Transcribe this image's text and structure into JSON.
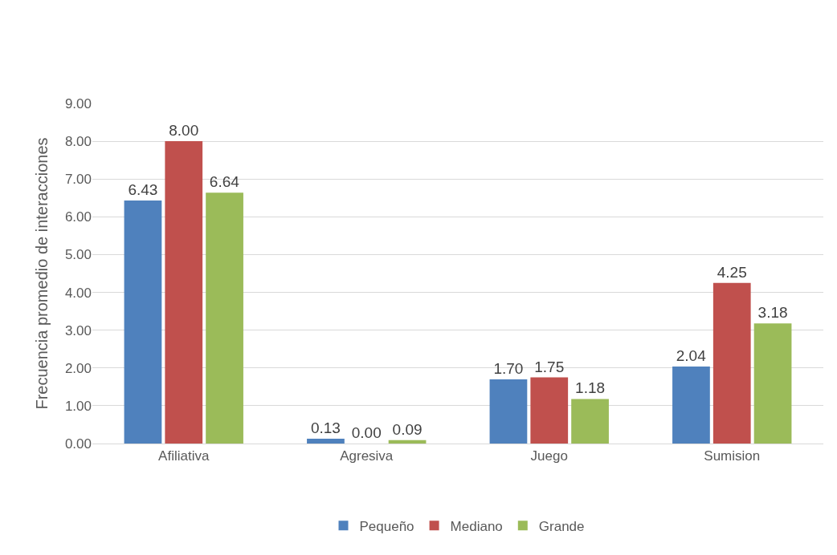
{
  "chart_data": {
    "type": "bar",
    "ylabel": "Frecuencia promedio de interacciones",
    "categories": [
      "Afiliativa",
      "Agresiva",
      "Juego",
      "Sumision"
    ],
    "series": [
      {
        "name": "Pequeño",
        "color": "#4f81bd",
        "values": [
          6.43,
          0.13,
          1.7,
          2.04
        ],
        "value_labels": [
          "6.43",
          "0.13",
          "1.70",
          "2.04"
        ]
      },
      {
        "name": "Mediano",
        "color": "#c0504d",
        "values": [
          8.0,
          0.0,
          1.75,
          4.25
        ],
        "value_labels": [
          "8.00",
          "0.00",
          "1.75",
          "4.25"
        ]
      },
      {
        "name": "Grande",
        "color": "#9bbb59",
        "values": [
          6.64,
          0.09,
          1.18,
          3.18
        ],
        "value_labels": [
          "6.64",
          "0.09",
          "1.18",
          "3.18"
        ]
      }
    ],
    "ylim": [
      0,
      9
    ],
    "yticks": [
      {
        "value": 0,
        "label": "0.00"
      },
      {
        "value": 1,
        "label": "1.00"
      },
      {
        "value": 2,
        "label": "2.00"
      },
      {
        "value": 3,
        "label": "3.00"
      },
      {
        "value": 4,
        "label": "4.00"
      },
      {
        "value": 5,
        "label": "5.00"
      },
      {
        "value": 6,
        "label": "6.00"
      },
      {
        "value": 7,
        "label": "7.00"
      },
      {
        "value": 8,
        "label": "8.00"
      },
      {
        "value": 9,
        "label": "9.00"
      }
    ],
    "grid": "y",
    "legend": "bottom"
  }
}
